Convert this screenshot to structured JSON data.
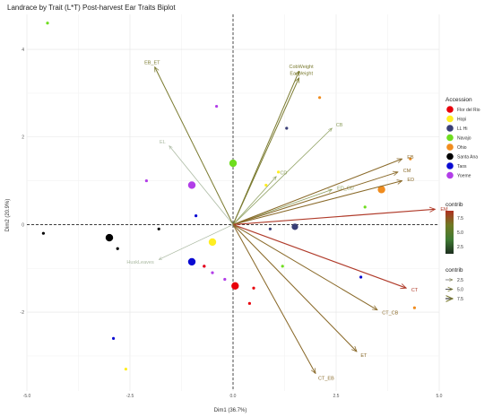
{
  "chart_data": {
    "type": "scatter",
    "title": "Landrace by Trait (L*T) Post-harvest Ear Traits Biplot",
    "xlabel": "Dim1 (36.7%)",
    "ylabel": "Dim2 (20.9%)",
    "xlim": [
      -5.0,
      5.0
    ],
    "ylim": [
      -3.8,
      4.8
    ],
    "xticks": [
      -5.0,
      -2.5,
      0.0,
      2.5,
      5.0
    ],
    "xtick_labels": [
      "-5.0",
      "-2.5",
      "0.0",
      "2.5",
      "5.0"
    ],
    "yticks": [
      -2,
      0,
      2,
      4
    ],
    "ytick_labels": [
      "-2",
      "0",
      "2",
      "4"
    ],
    "grid": true,
    "legend_position": "right",
    "accession_legend": {
      "title": "Accession",
      "items": [
        {
          "name": "Flor del Rio",
          "color": "#e8000b"
        },
        {
          "name": "Hopi",
          "color": "#ffee22"
        },
        {
          "name": "LL Hi",
          "color": "#3a3f77"
        },
        {
          "name": "Navajo",
          "color": "#6fdd1f"
        },
        {
          "name": "Ohio",
          "color": "#f08c1e"
        },
        {
          "name": "Santa Ana",
          "color": "#000000"
        },
        {
          "name": "Taos",
          "color": "#0a0ad2"
        },
        {
          "name": "Yoeme",
          "color": "#b23ee8"
        }
      ]
    },
    "contrib_color_legend": {
      "title": "contrib",
      "labels": [
        "7.5",
        "5.0",
        "2.5"
      ],
      "colors": [
        "#b03020",
        "#6f7a24",
        "#3f7a33",
        "#1d2f1f"
      ]
    },
    "contrib_arrow_legend": {
      "title": "contrib",
      "labels": [
        "2.5",
        "5.0",
        "7.5"
      ]
    },
    "points": [
      {
        "x": -4.5,
        "y": 4.6,
        "group": "Navajo",
        "size": 1.5
      },
      {
        "x": 0.0,
        "y": 1.4,
        "group": "Navajo",
        "size": 3
      },
      {
        "x": 3.2,
        "y": 0.4,
        "group": "Navajo",
        "size": 1.5
      },
      {
        "x": 1.2,
        "y": -0.95,
        "group": "Navajo",
        "size": 1.5
      },
      {
        "x": -0.4,
        "y": 2.7,
        "group": "Yoeme",
        "size": 1.5
      },
      {
        "x": -2.1,
        "y": 1.0,
        "group": "Yoeme",
        "size": 1.5
      },
      {
        "x": -1.0,
        "y": 0.9,
        "group": "Yoeme",
        "size": 3
      },
      {
        "x": -0.7,
        "y": -0.95,
        "group": "Yoeme",
        "size": 1.5
      },
      {
        "x": -0.5,
        "y": -1.1,
        "group": "Yoeme",
        "size": 1.5
      },
      {
        "x": -0.2,
        "y": -1.25,
        "group": "Yoeme",
        "size": 1.5
      },
      {
        "x": 2.1,
        "y": 2.9,
        "group": "Ohio",
        "size": 1.5
      },
      {
        "x": 4.3,
        "y": 1.5,
        "group": "Ohio",
        "size": 1.5
      },
      {
        "x": 3.6,
        "y": 0.8,
        "group": "Ohio",
        "size": 3
      },
      {
        "x": 4.4,
        "y": -1.9,
        "group": "Ohio",
        "size": 1.5
      },
      {
        "x": 1.3,
        "y": 2.2,
        "group": "LL Hi",
        "size": 1.5
      },
      {
        "x": 1.5,
        "y": -0.05,
        "group": "LL Hi",
        "size": 2.5
      },
      {
        "x": 0.9,
        "y": -0.1,
        "group": "LL Hi",
        "size": 1.5
      },
      {
        "x": 0.8,
        "y": 0.9,
        "group": "Hopi",
        "size": 1.5
      },
      {
        "x": 1.1,
        "y": 1.2,
        "group": "Hopi",
        "size": 1.5
      },
      {
        "x": -0.5,
        "y": -0.4,
        "group": "Hopi",
        "size": 3
      },
      {
        "x": -2.6,
        "y": -3.3,
        "group": "Hopi",
        "size": 1.5
      },
      {
        "x": -1.8,
        "y": -0.1,
        "group": "Santa Ana",
        "size": 1.5
      },
      {
        "x": -3.0,
        "y": -0.3,
        "group": "Santa Ana",
        "size": 3
      },
      {
        "x": -2.8,
        "y": -0.55,
        "group": "Santa Ana",
        "size": 1.5
      },
      {
        "x": -4.6,
        "y": -0.2,
        "group": "Santa Ana",
        "size": 1.5
      },
      {
        "x": -0.9,
        "y": 0.2,
        "group": "Taos",
        "size": 1.5
      },
      {
        "x": -1.0,
        "y": -0.85,
        "group": "Taos",
        "size": 3
      },
      {
        "x": 3.1,
        "y": -1.2,
        "group": "Taos",
        "size": 1.5
      },
      {
        "x": -2.9,
        "y": -2.6,
        "group": "Taos",
        "size": 1.5
      },
      {
        "x": 0.05,
        "y": -1.4,
        "group": "Flor del Rio",
        "size": 3
      },
      {
        "x": 0.5,
        "y": -1.45,
        "group": "Flor del Rio",
        "size": 1.5
      },
      {
        "x": 0.4,
        "y": -1.8,
        "group": "Flor del Rio",
        "size": 1.5
      },
      {
        "x": -0.7,
        "y": -0.95,
        "group": "Flor del Rio",
        "size": 1.5
      }
    ],
    "vectors": [
      {
        "name": "EB_ET",
        "x": -1.9,
        "y": 3.6,
        "contrib": 5.5
      },
      {
        "name": "EL",
        "x": -1.55,
        "y": 1.8,
        "contrib": 2.5
      },
      {
        "name": "CobWeight",
        "x": 1.6,
        "y": 3.5,
        "contrib": 5.5
      },
      {
        "name": "EarWeight",
        "x": 1.6,
        "y": 3.35,
        "contrib": 5.5
      },
      {
        "name": "CB",
        "x": 2.4,
        "y": 2.2,
        "contrib": 3.0
      },
      {
        "name": "CD",
        "x": 1.05,
        "y": 1.1,
        "contrib": 3.0
      },
      {
        "name": "ED_CD",
        "x": 2.4,
        "y": 0.8,
        "contrib": 3.5
      },
      {
        "name": "EB",
        "x": 4.1,
        "y": 1.5,
        "contrib": 6.0
      },
      {
        "name": "CM",
        "x": 4.0,
        "y": 1.2,
        "contrib": 6.0
      },
      {
        "name": "ED",
        "x": 4.1,
        "y": 1.0,
        "contrib": 6.0
      },
      {
        "name": "EM",
        "x": 4.9,
        "y": 0.35,
        "contrib": 7.5
      },
      {
        "name": "HuskLeaves",
        "x": -1.8,
        "y": -0.8,
        "contrib": 2.0
      },
      {
        "name": "CT",
        "x": 4.2,
        "y": -1.45,
        "contrib": 7.5
      },
      {
        "name": "CT_CB",
        "x": 3.5,
        "y": -1.95,
        "contrib": 6.0
      },
      {
        "name": "ET",
        "x": 3.0,
        "y": -2.9,
        "contrib": 6.5
      },
      {
        "name": "CT_EB",
        "x": 2.0,
        "y": -3.4,
        "contrib": 6.0
      }
    ]
  }
}
